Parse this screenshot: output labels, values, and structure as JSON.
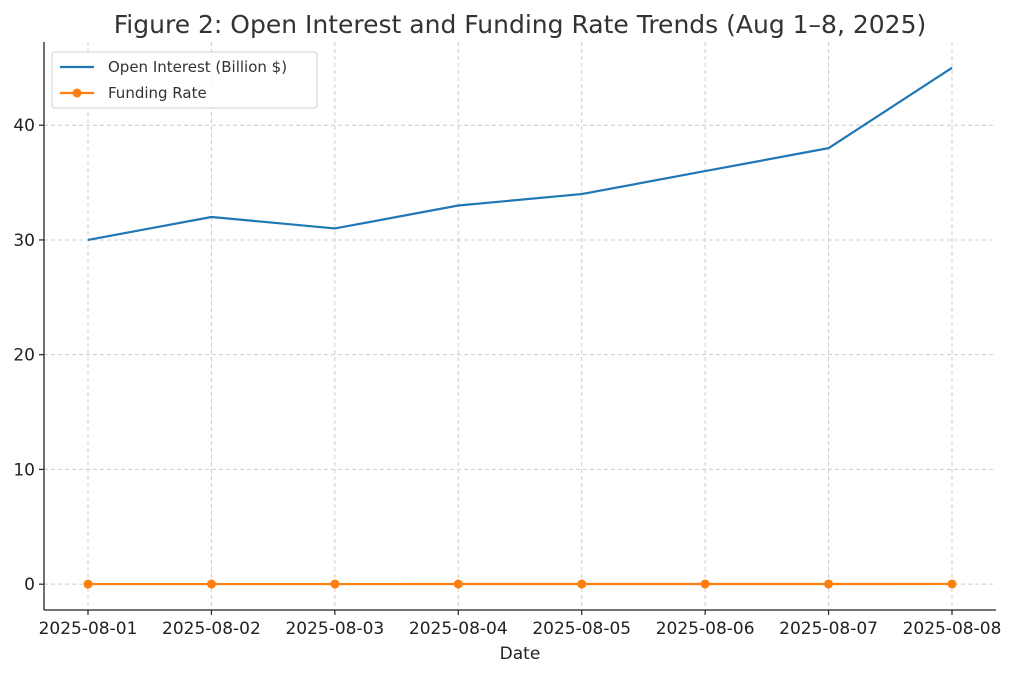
{
  "chart_data": {
    "type": "line",
    "title": "Figure 2: Open Interest and Funding Rate Trends (Aug 1–8, 2025)",
    "xlabel": "Date",
    "ylabel": "",
    "x": [
      "2025-08-01",
      "2025-08-02",
      "2025-08-03",
      "2025-08-04",
      "2025-08-05",
      "2025-08-06",
      "2025-08-07",
      "2025-08-08"
    ],
    "series": [
      {
        "name": "Open Interest (Billion $)",
        "values": [
          30,
          32,
          31,
          33,
          34,
          36,
          38,
          45
        ],
        "color": "#1f77b4",
        "markers": false
      },
      {
        "name": "Funding Rate",
        "values": [
          0.01,
          0.012,
          0.011,
          0.015,
          0.014,
          0.016,
          0.018,
          0.02
        ],
        "color": "#ff7f0e",
        "markers": true
      }
    ],
    "ylim": [
      -2.25,
      47.25
    ],
    "yticks": [
      0,
      10,
      20,
      30,
      40
    ],
    "grid": true,
    "legend_position": "top-left"
  }
}
